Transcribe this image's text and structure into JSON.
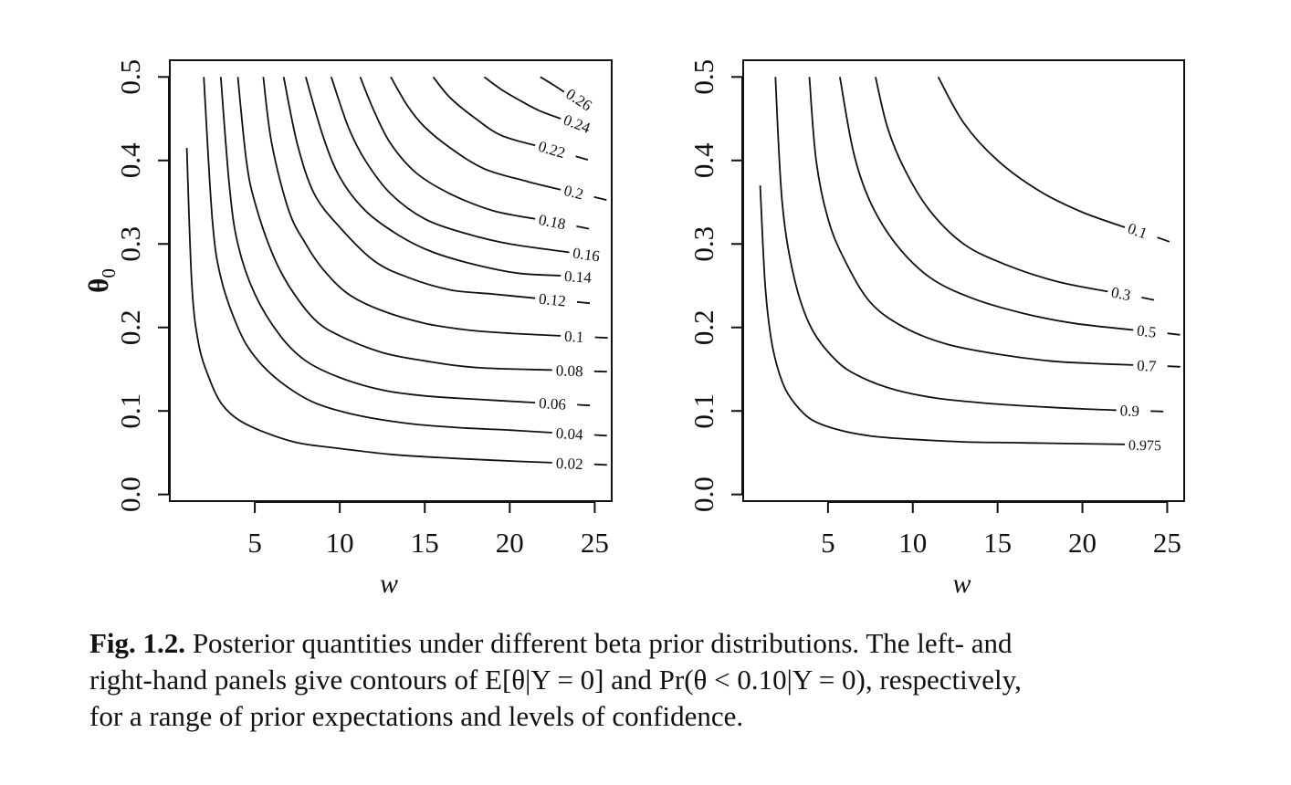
{
  "chart_data": [
    {
      "type": "contour",
      "title": "",
      "xlabel": "w",
      "ylabel": "θ0",
      "ylabel_main": "θ",
      "ylabel_sub": "0",
      "xlim": [
        0,
        26
      ],
      "ylim": [
        -0.008,
        0.52
      ],
      "xticks": [
        5,
        10,
        15,
        20,
        25
      ],
      "xtick_labels": [
        "5",
        "10",
        "15",
        "20",
        "25"
      ],
      "yticks": [
        0.0,
        0.1,
        0.2,
        0.3,
        0.4,
        0.5
      ],
      "ytick_labels": [
        "0.0",
        "0.1",
        "0.2",
        "0.3",
        "0.4",
        "0.5"
      ],
      "grid": false,
      "quantity": "E[θ|Y=0]",
      "levels": [
        0.02,
        0.04,
        0.06,
        0.08,
        0.1,
        0.12,
        0.14,
        0.16,
        0.18,
        0.2,
        0.22,
        0.24,
        0.26
      ],
      "level_labels": [
        "0.02",
        "0.04",
        "0.06",
        "0.08",
        "0.1",
        "0.12",
        "0.14",
        "0.16",
        "0.18",
        "0.2",
        "0.22",
        "0.24",
        "0.26"
      ],
      "contours": [
        {
          "label": "0.02",
          "x": [
            1.0,
            1.3,
            1.7,
            2.3,
            3.0,
            4.0,
            5.5,
            7.5,
            10.0,
            13.0,
            16.0,
            19.0,
            22.5
          ],
          "y": [
            0.415,
            0.25,
            0.18,
            0.14,
            0.11,
            0.09,
            0.075,
            0.062,
            0.055,
            0.048,
            0.044,
            0.041,
            0.038
          ]
        },
        {
          "label": "0.04",
          "x": [
            2.0,
            2.5,
            3.0,
            4.0,
            5.0,
            6.5,
            8.5,
            11.0,
            14.0,
            17.0,
            20.0,
            22.5
          ],
          "y": [
            0.5,
            0.33,
            0.26,
            0.2,
            0.165,
            0.135,
            0.11,
            0.095,
            0.085,
            0.08,
            0.077,
            0.074
          ]
        },
        {
          "label": "0.06",
          "x": [
            3.0,
            3.5,
            4.0,
            5.0,
            6.5,
            8.0,
            10.0,
            12.5,
            15.0,
            18.0,
            21.5
          ],
          "y": [
            0.5,
            0.37,
            0.3,
            0.24,
            0.19,
            0.16,
            0.14,
            0.125,
            0.118,
            0.114,
            0.11
          ]
        },
        {
          "label": "0.08",
          "x": [
            4.0,
            4.5,
            5.0,
            6.0,
            7.0,
            8.5,
            10.0,
            12.5,
            15.0,
            18.0,
            22.5
          ],
          "y": [
            0.5,
            0.4,
            0.35,
            0.29,
            0.25,
            0.21,
            0.19,
            0.17,
            0.16,
            0.152,
            0.149
          ]
        },
        {
          "label": "0.1",
          "x": [
            5.5,
            6.0,
            7.0,
            8.0,
            9.0,
            10.5,
            12.5,
            15.0,
            17.5,
            20.0,
            23.0
          ],
          "y": [
            0.5,
            0.42,
            0.34,
            0.3,
            0.27,
            0.24,
            0.22,
            0.205,
            0.197,
            0.193,
            0.19
          ]
        },
        {
          "label": "0.12",
          "x": [
            6.7,
            7.5,
            8.5,
            10.0,
            12.0,
            14.0,
            16.5,
            19.0,
            21.5
          ],
          "y": [
            0.5,
            0.42,
            0.36,
            0.32,
            0.28,
            0.26,
            0.245,
            0.24,
            0.235
          ]
        },
        {
          "label": "0.14",
          "x": [
            8.0,
            9.0,
            10.0,
            11.5,
            13.5,
            15.5,
            18.0,
            20.5,
            23.0
          ],
          "y": [
            0.5,
            0.43,
            0.38,
            0.34,
            0.31,
            0.29,
            0.275,
            0.265,
            0.262
          ]
        },
        {
          "label": "0.16",
          "x": [
            9.5,
            10.5,
            11.5,
            13.0,
            15.0,
            17.5,
            20.0,
            23.5
          ],
          "y": [
            0.5,
            0.44,
            0.4,
            0.36,
            0.33,
            0.312,
            0.3,
            0.29
          ]
        },
        {
          "label": "0.18",
          "x": [
            11.2,
            12.0,
            13.0,
            14.5,
            16.5,
            19.0,
            21.5
          ],
          "y": [
            0.5,
            0.46,
            0.42,
            0.385,
            0.36,
            0.34,
            0.33
          ]
        },
        {
          "label": "0.2",
          "x": [
            13.0,
            14.0,
            15.0,
            16.5,
            18.5,
            21.0,
            23.0
          ],
          "y": [
            0.5,
            0.465,
            0.44,
            0.415,
            0.39,
            0.375,
            0.365
          ]
        },
        {
          "label": "0.22",
          "x": [
            15.5,
            16.5,
            18.0,
            19.5,
            21.5
          ],
          "y": [
            0.5,
            0.475,
            0.45,
            0.43,
            0.418
          ]
        },
        {
          "label": "0.24",
          "x": [
            18.5,
            19.5,
            20.5,
            21.7,
            23.0
          ],
          "y": [
            0.5,
            0.485,
            0.473,
            0.46,
            0.45
          ]
        },
        {
          "label": "0.26",
          "x": [
            21.8,
            22.6,
            23.2
          ],
          "y": [
            0.5,
            0.49,
            0.482
          ]
        }
      ]
    },
    {
      "type": "contour",
      "title": "",
      "xlabel": "w",
      "ylabel": "",
      "xlim": [
        0,
        26
      ],
      "ylim": [
        -0.008,
        0.52
      ],
      "xticks": [
        5,
        10,
        15,
        20,
        25
      ],
      "xtick_labels": [
        "5",
        "10",
        "15",
        "20",
        "25"
      ],
      "yticks": [
        0.0,
        0.1,
        0.2,
        0.3,
        0.4,
        0.5
      ],
      "ytick_labels": [
        "0.0",
        "0.1",
        "0.2",
        "0.3",
        "0.4",
        "0.5"
      ],
      "grid": false,
      "quantity": "Pr(θ < 0.10|Y=0)",
      "levels": [
        0.1,
        0.3,
        0.5,
        0.7,
        0.9,
        0.975
      ],
      "level_labels": [
        "0.1",
        "0.3",
        "0.5",
        "0.7",
        "0.9",
        "0.975"
      ],
      "contours": [
        {
          "label": "0.975",
          "x": [
            1.0,
            1.3,
            1.7,
            2.3,
            3.0,
            4.0,
            5.5,
            7.5,
            10.0,
            13.0,
            16.0,
            19.0,
            22.5
          ],
          "y": [
            0.37,
            0.25,
            0.18,
            0.135,
            0.11,
            0.09,
            0.078,
            0.07,
            0.066,
            0.063,
            0.062,
            0.061,
            0.06
          ]
        },
        {
          "label": "0.9",
          "x": [
            1.9,
            2.3,
            3.0,
            4.0,
            5.5,
            7.0,
            9.0,
            11.5,
            14.5,
            17.5,
            20.5,
            22.0
          ],
          "y": [
            0.5,
            0.35,
            0.26,
            0.2,
            0.16,
            0.14,
            0.125,
            0.115,
            0.109,
            0.105,
            0.102,
            0.101
          ]
        },
        {
          "label": "0.7",
          "x": [
            3.9,
            4.3,
            5.0,
            6.0,
            7.5,
            9.5,
            12.0,
            15.0,
            18.0,
            20.5,
            23.0
          ],
          "y": [
            0.5,
            0.4,
            0.33,
            0.28,
            0.23,
            0.2,
            0.18,
            0.168,
            0.16,
            0.157,
            0.155
          ]
        },
        {
          "label": "0.5",
          "x": [
            5.7,
            6.5,
            7.5,
            9.0,
            11.0,
            13.5,
            16.5,
            19.5,
            23.0
          ],
          "y": [
            0.5,
            0.41,
            0.35,
            0.3,
            0.26,
            0.235,
            0.217,
            0.205,
            0.197
          ]
        },
        {
          "label": "0.3",
          "x": [
            7.8,
            8.5,
            9.5,
            11.0,
            13.0,
            15.5,
            18.5,
            21.5
          ],
          "y": [
            0.5,
            0.44,
            0.39,
            0.34,
            0.3,
            0.275,
            0.255,
            0.243
          ]
        },
        {
          "label": "0.1",
          "x": [
            11.5,
            13.0,
            15.0,
            17.5,
            20.0,
            22.5
          ],
          "y": [
            0.5,
            0.445,
            0.4,
            0.363,
            0.338,
            0.32
          ]
        }
      ]
    }
  ],
  "caption": {
    "label": "Fig. 1.2.",
    "line1": "Posterior quantities under different beta prior distributions. The left- and",
    "line2": "right-hand panels give contours of E[θ|Y = 0] and Pr(θ < 0.10|Y = 0), respectively,",
    "line3": "for a range of prior expectations and levels of confidence."
  }
}
